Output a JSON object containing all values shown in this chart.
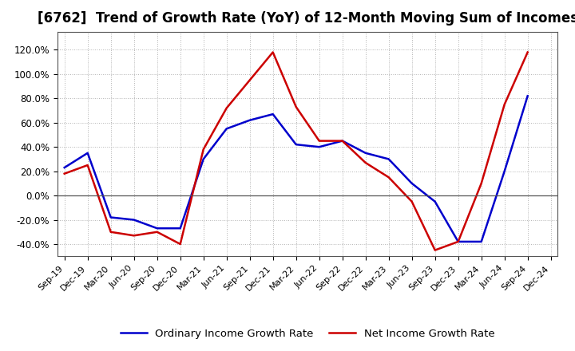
{
  "title": "[6762]  Trend of Growth Rate (YoY) of 12-Month Moving Sum of Incomes",
  "x_labels": [
    "Sep-19",
    "Dec-19",
    "Mar-20",
    "Jun-20",
    "Sep-20",
    "Dec-20",
    "Mar-21",
    "Jun-21",
    "Sep-21",
    "Dec-21",
    "Mar-22",
    "Jun-22",
    "Sep-22",
    "Dec-22",
    "Mar-23",
    "Jun-23",
    "Sep-23",
    "Dec-23",
    "Mar-24",
    "Jun-24",
    "Sep-24",
    "Dec-24"
  ],
  "ordinary_income": [
    0.23,
    0.35,
    -0.18,
    -0.2,
    -0.27,
    -0.27,
    0.3,
    0.55,
    0.62,
    0.67,
    0.42,
    0.4,
    0.45,
    0.35,
    0.3,
    0.1,
    -0.05,
    -0.38,
    -0.38,
    0.2,
    0.82,
    null
  ],
  "net_income": [
    0.18,
    0.25,
    -0.3,
    -0.33,
    -0.3,
    -0.4,
    0.38,
    0.72,
    0.95,
    1.18,
    0.73,
    0.45,
    0.45,
    0.27,
    0.15,
    -0.05,
    -0.45,
    -0.38,
    0.1,
    0.75,
    1.18,
    null
  ],
  "ordinary_color": "#0000cc",
  "net_color": "#cc0000",
  "ylim": [
    -0.5,
    1.35
  ],
  "yticks": [
    -0.4,
    -0.2,
    0.0,
    0.2,
    0.4,
    0.6,
    0.8,
    1.0,
    1.2
  ],
  "ytick_labels": [
    "-40.0%",
    "-20.0%",
    "0.0%",
    "20.0%",
    "40.0%",
    "60.0%",
    "80.0%",
    "100.0%",
    "120.0%"
  ],
  "background_color": "#ffffff",
  "grid_color": "#aaaaaa",
  "title_fontsize": 12,
  "legend_ordinary": "Ordinary Income Growth Rate",
  "legend_net": "Net Income Growth Rate"
}
